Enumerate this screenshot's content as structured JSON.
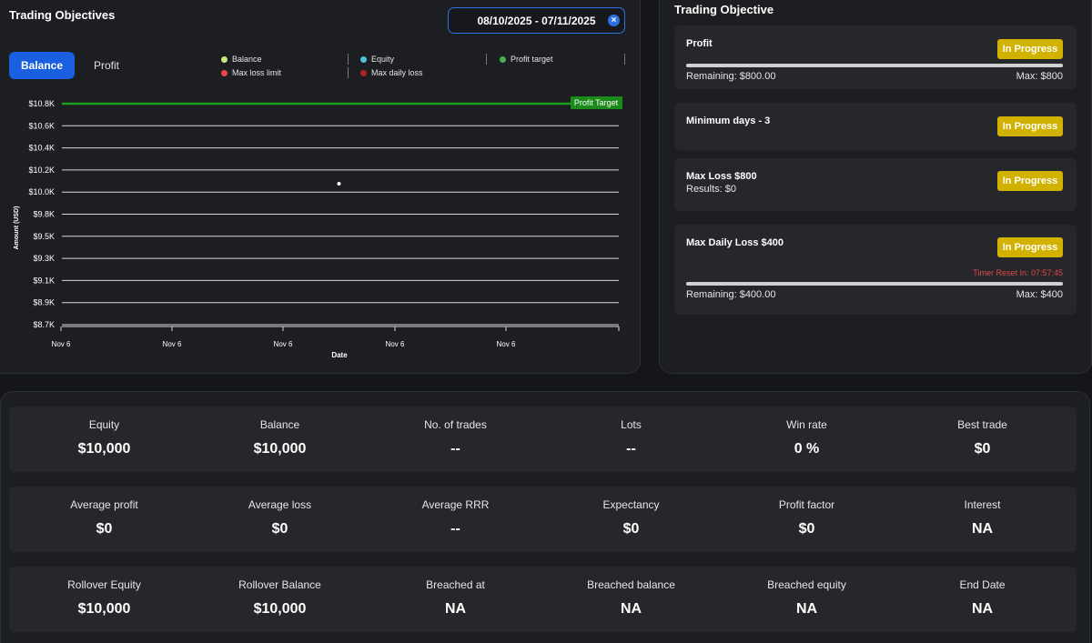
{
  "header": {
    "title": "Trading Objectives",
    "date_range": "08/10/2025 - 07/11/2025",
    "clear_icon": "×"
  },
  "tabs": {
    "balance": "Balance",
    "profit": "Profit"
  },
  "legend": [
    {
      "label": "Balance",
      "color": "#c8ec7a"
    },
    {
      "label": "Equity",
      "color": "#4fc3d9"
    },
    {
      "label": "Profit target",
      "color": "#4caf50"
    },
    {
      "label": "Max loss limit",
      "color": "#e84848"
    },
    {
      "label": "Max daily loss",
      "color": "#b0202a"
    }
  ],
  "chart_data": {
    "type": "line",
    "ylabel": "Amount (USD)",
    "xlabel": "Date",
    "y_ticks": [
      "$10.8K",
      "$10.6K",
      "$10.4K",
      "$10.2K",
      "$10.0K",
      "$9.8K",
      "$9.5K",
      "$9.3K",
      "$9.1K",
      "$8.9K",
      "$8.7K"
    ],
    "x_ticks": [
      "Nov 6",
      "Nov 6",
      "Nov 6",
      "Nov 6",
      "Nov 6"
    ],
    "profit_target": {
      "value": 10800,
      "label": "Profit Target",
      "color": "#1e9c1e"
    },
    "series": [
      {
        "name": "Balance",
        "points": [
          {
            "x_index": 2.5,
            "y": 10040
          }
        ]
      }
    ],
    "ylim": [
      8700,
      10800
    ],
    "grid": true
  },
  "objectives": {
    "title": "Trading Objective",
    "items": [
      {
        "title": "Profit",
        "status": "In Progress",
        "remaining": "Remaining: $800.00",
        "max": "Max: $800",
        "progress": 1.0
      },
      {
        "title": "Minimum days - 3",
        "status": "In Progress"
      },
      {
        "title": "Max Loss $800",
        "subtitle": "Results: $0",
        "status": "In Progress"
      },
      {
        "title": "Max Daily Loss $400",
        "status": "In Progress",
        "timer": "Timer Reset In: 07:57:45",
        "remaining": "Remaining: $400.00",
        "max": "Max: $400",
        "progress": 1.0
      }
    ]
  },
  "stats": [
    [
      {
        "label": "Equity",
        "value": "$10,000"
      },
      {
        "label": "Balance",
        "value": "$10,000"
      },
      {
        "label": "No. of trades",
        "value": "--"
      },
      {
        "label": "Lots",
        "value": "--"
      },
      {
        "label": "Win rate",
        "value": "0 %"
      },
      {
        "label": "Best trade",
        "value": "$0"
      }
    ],
    [
      {
        "label": "Average profit",
        "value": "$0"
      },
      {
        "label": "Average loss",
        "value": "$0"
      },
      {
        "label": "Average RRR",
        "value": "--"
      },
      {
        "label": "Expectancy",
        "value": "$0"
      },
      {
        "label": "Profit factor",
        "value": "$0"
      },
      {
        "label": "Interest",
        "value": "NA"
      }
    ],
    [
      {
        "label": "Rollover Equity",
        "value": "$10,000"
      },
      {
        "label": "Rollover Balance",
        "value": "$10,000"
      },
      {
        "label": "Breached at",
        "value": "NA"
      },
      {
        "label": "Breached balance",
        "value": "NA"
      },
      {
        "label": "Breached equity",
        "value": "NA"
      },
      {
        "label": "End Date",
        "value": "NA"
      }
    ]
  ]
}
